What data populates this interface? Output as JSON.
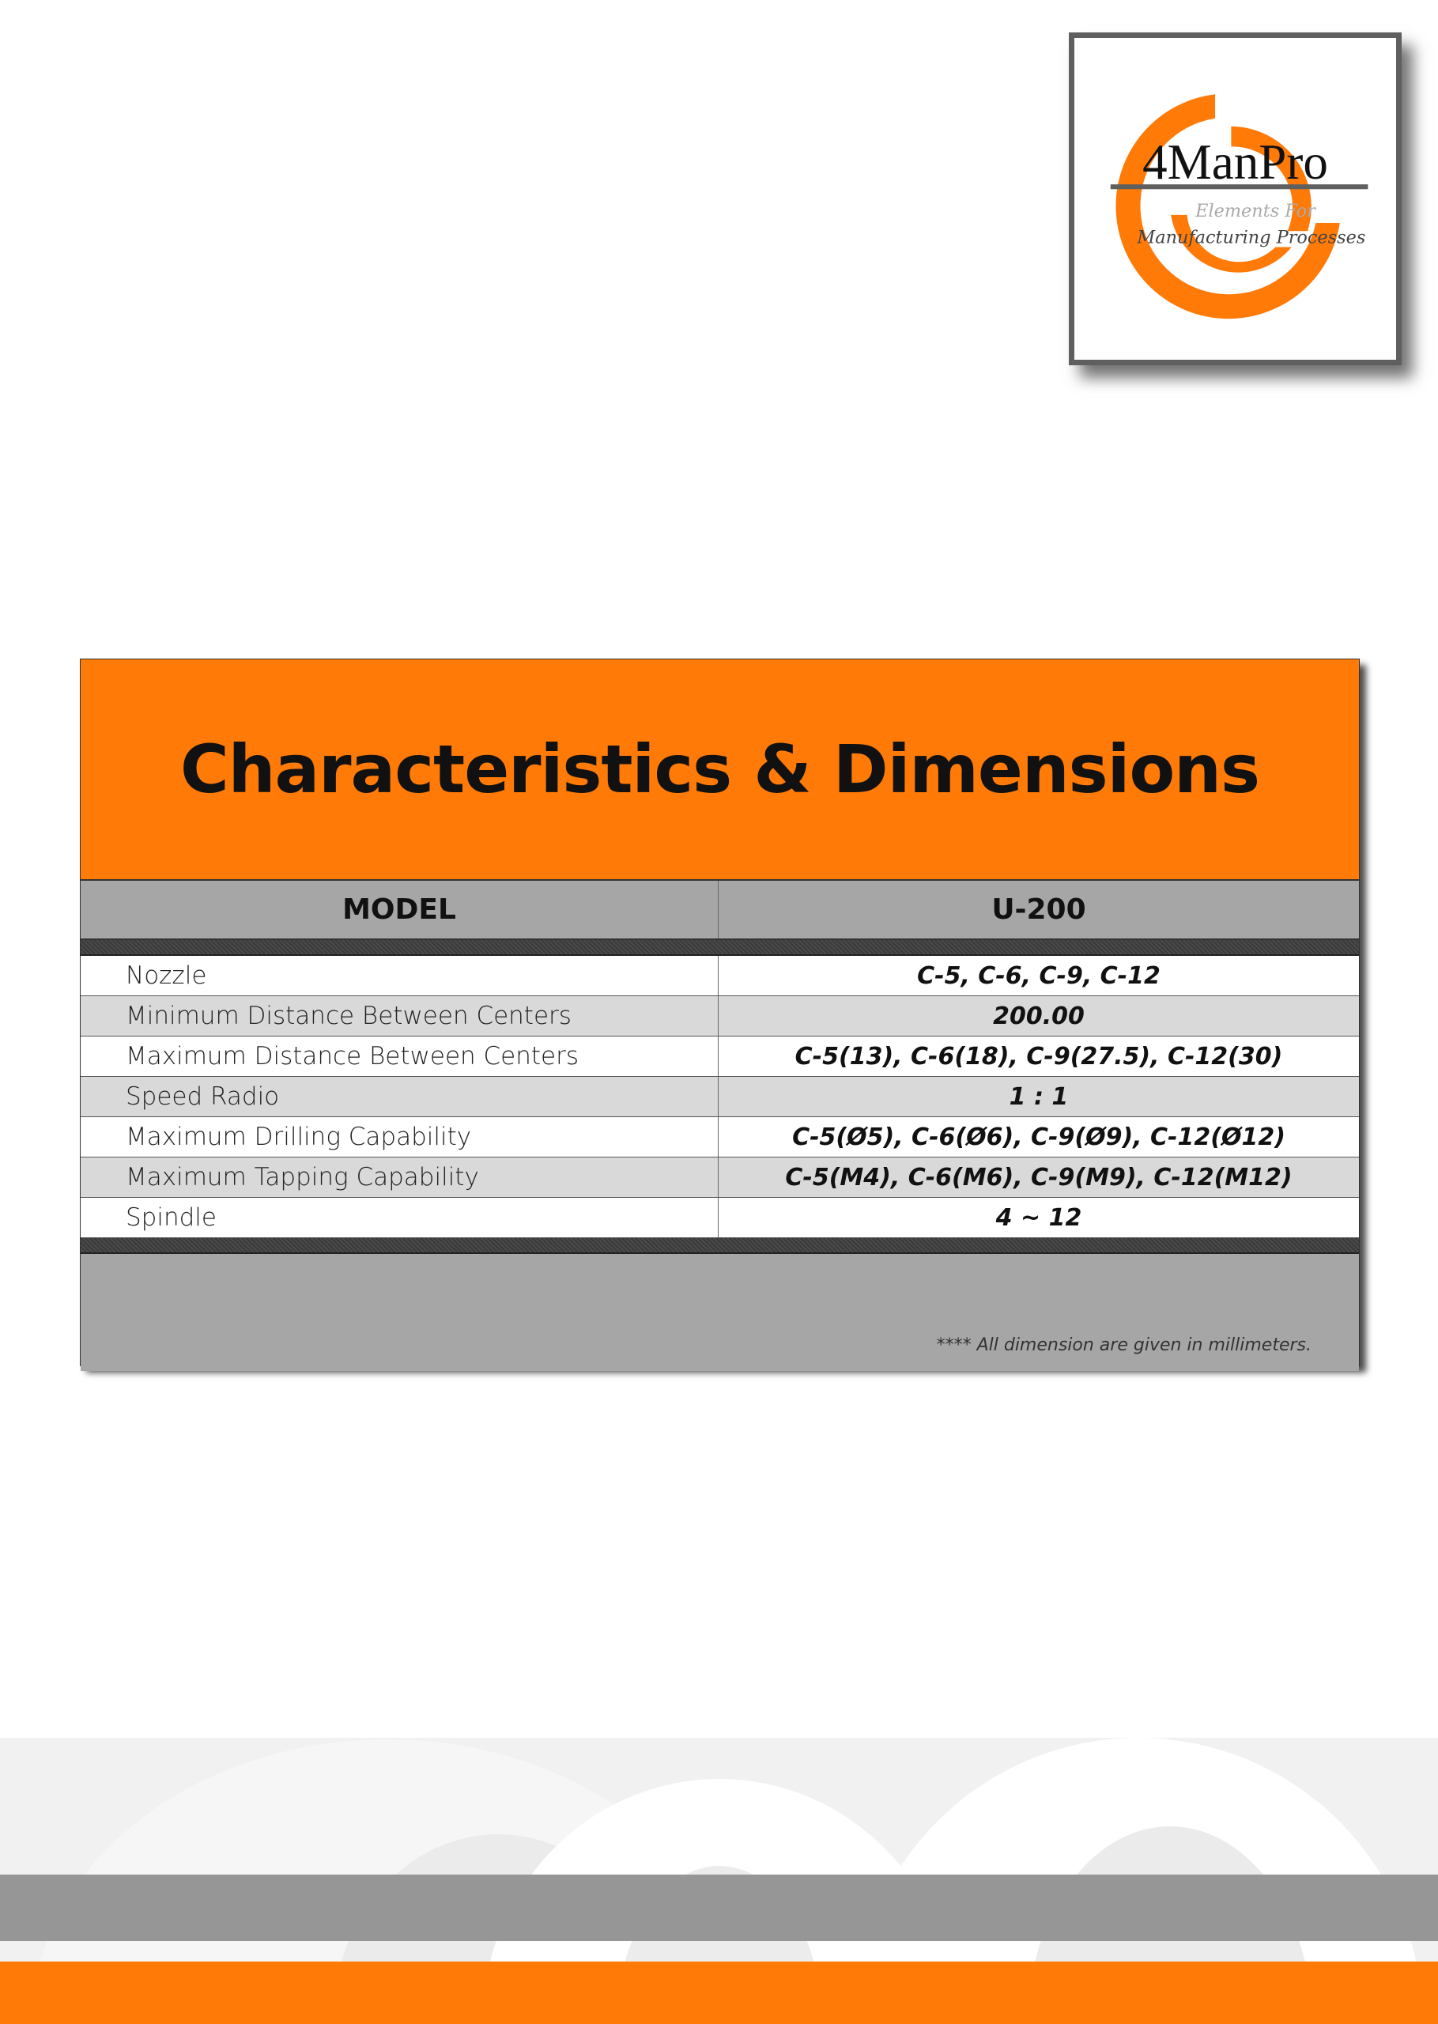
{
  "logo": {
    "brand": "4ManPro",
    "tagline_1": "Elements For",
    "tagline_2": "Manufacturing Processes",
    "accent": "#ff7a07"
  },
  "title": "Characteristics & Dimensions",
  "table": {
    "header": {
      "label": "MODEL",
      "value": "U-200"
    },
    "rows": [
      {
        "label": "Nozzle",
        "value": "C-5, C-6, C-9, C-12"
      },
      {
        "label": "Minimum Distance Between Centers",
        "value": "200.00"
      },
      {
        "label": "Maximum Distance Between Centers",
        "value": "C-5(13), C-6(18), C-9(27.5), C-12(30)"
      },
      {
        "label": "Speed Radio",
        "value": "1 : 1"
      },
      {
        "label": "Maximum Drilling Capability",
        "value": "C-5(Ø5), C-6(Ø6), C-9(Ø9), C-12(Ø12)"
      },
      {
        "label": "Maximum Tapping Capability",
        "value": "C-5(M4), C-6(M6), C-9(M9), C-12(M12)"
      },
      {
        "label": "Spindle",
        "value": "4 ~ 12"
      }
    ]
  },
  "note": "**** All dimension are given in millimeters.",
  "colors": {
    "orange": "#ff7a07",
    "gray": "#a6a6a6",
    "band": "#969696"
  }
}
